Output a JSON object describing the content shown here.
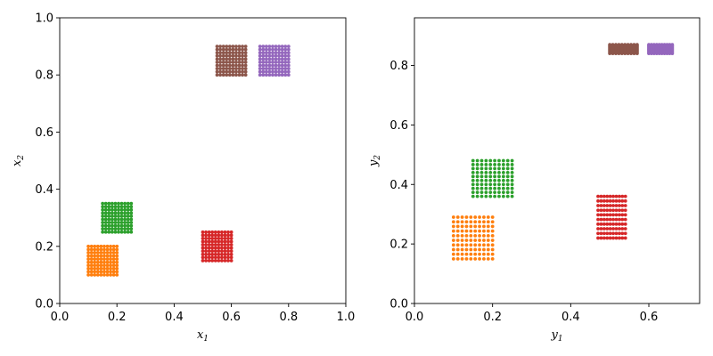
{
  "chart_data": [
    {
      "type": "scatter",
      "xlabel": "x",
      "xlabel_sub": "1",
      "ylabel": "x",
      "ylabel_sub": "2",
      "xlim": [
        0,
        1.0
      ],
      "ylim": [
        0,
        1.0
      ],
      "xticks": [
        0.0,
        0.2,
        0.4,
        0.6,
        0.8,
        1.0
      ],
      "yticks": [
        0.0,
        0.2,
        0.4,
        0.6,
        0.8,
        1.0
      ],
      "xtick_labels": [
        "0.0",
        "0.2",
        "0.4",
        "0.6",
        "0.8",
        "1.0"
      ],
      "ytick_labels": [
        "0.0",
        "0.2",
        "0.4",
        "0.6",
        "0.8",
        "1.0"
      ],
      "grid": false,
      "series": [
        {
          "color": "#ff7f0e",
          "grid": {
            "x": [
              0.1,
              0.2
            ],
            "y": [
              0.1,
              0.2
            ],
            "nx": 10,
            "ny": 10
          }
        },
        {
          "color": "#2ca02c",
          "grid": {
            "x": [
              0.15,
              0.25
            ],
            "y": [
              0.25,
              0.35
            ],
            "nx": 10,
            "ny": 10
          }
        },
        {
          "color": "#d62728",
          "grid": {
            "x": [
              0.5,
              0.6
            ],
            "y": [
              0.15,
              0.25
            ],
            "nx": 10,
            "ny": 10
          }
        },
        {
          "color": "#8c564b",
          "grid": {
            "x": [
              0.55,
              0.65
            ],
            "y": [
              0.8,
              0.9
            ],
            "nx": 10,
            "ny": 10
          }
        },
        {
          "color": "#9467bd",
          "grid": {
            "x": [
              0.7,
              0.8
            ],
            "y": [
              0.8,
              0.9
            ],
            "nx": 10,
            "ny": 10
          }
        }
      ]
    },
    {
      "type": "scatter",
      "xlabel": "y",
      "xlabel_sub": "1",
      "ylabel": "y",
      "ylabel_sub": "2",
      "xlim": [
        0,
        0.73
      ],
      "ylim": [
        0,
        0.96
      ],
      "xticks": [
        0.0,
        0.2,
        0.4,
        0.6
      ],
      "yticks": [
        0.0,
        0.2,
        0.4,
        0.6,
        0.8
      ],
      "xtick_labels": [
        "0.0",
        "0.2",
        "0.4",
        "0.6"
      ],
      "ytick_labels": [
        "0.0",
        "0.2",
        "0.4",
        "0.6",
        "0.8"
      ],
      "grid": false,
      "series": [
        {
          "color": "#ff7f0e",
          "grid": {
            "x": [
              0.1,
              0.2
            ],
            "y": [
              0.15,
              0.29
            ],
            "nx": 10,
            "ny": 10
          }
        },
        {
          "color": "#2ca02c",
          "grid": {
            "x": [
              0.15,
              0.25
            ],
            "y": [
              0.36,
              0.48
            ],
            "nx": 10,
            "ny": 10
          }
        },
        {
          "color": "#d62728",
          "grid": {
            "x": [
              0.47,
              0.54
            ],
            "y": [
              0.22,
              0.36
            ],
            "nx": 10,
            "ny": 10
          }
        },
        {
          "color": "#8c564b",
          "grid": {
            "x": [
              0.5,
              0.57
            ],
            "y": [
              0.84,
              0.87
            ],
            "nx": 10,
            "ny": 10
          }
        },
        {
          "color": "#9467bd",
          "grid": {
            "x": [
              0.6,
              0.66
            ],
            "y": [
              0.84,
              0.87
            ],
            "nx": 10,
            "ny": 10
          }
        }
      ]
    }
  ]
}
